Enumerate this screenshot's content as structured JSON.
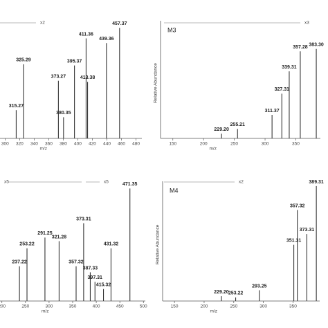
{
  "chart_data": [
    {
      "type": "bar",
      "xlabel": "m/z",
      "zoom_labels": [
        "x2"
      ],
      "x": [
        315.27,
        325.29,
        373.27,
        380.35,
        395.37,
        411.36,
        413.38,
        439.36,
        457.37
      ],
      "x_labels": [
        "315.27",
        "325.29",
        "373.27",
        "380.35",
        "395.37",
        "411.36",
        "413.38",
        "439.36",
        "457.37"
      ],
      "values": [
        24,
        63,
        49,
        18,
        62,
        85,
        48,
        81,
        94
      ],
      "color": "#333333",
      "xlim": [
        293,
        488
      ],
      "xticks": [
        300,
        320,
        340,
        360,
        380,
        400,
        420,
        440,
        460,
        480
      ],
      "ylim": [
        0,
        100
      ]
    },
    {
      "type": "bar",
      "xlabel": "m/z",
      "ylabel": "Relative Abundance",
      "panel_label": "M3",
      "zoom_labels": [
        "x3"
      ],
      "x": [
        229.2,
        255.21,
        311.37,
        327.31,
        339.31,
        357.28,
        383.3
      ],
      "x_labels": [
        "229.20",
        "255.21",
        "311.37",
        "327.31",
        "339.31",
        "357.28",
        "383.30"
      ],
      "values": [
        4,
        8,
        20,
        38,
        57,
        74,
        76
      ],
      "color": "#333333",
      "xlim": [
        130,
        390
      ],
      "xticks": [
        150,
        200,
        250,
        300,
        350
      ],
      "ylim": [
        0,
        100
      ]
    },
    {
      "type": "bar",
      "xlabel": "m/z",
      "zoom_labels": [
        "x5",
        "x5"
      ],
      "x": [
        237.22,
        253.22,
        291.25,
        321.28,
        357.32,
        373.31,
        387.33,
        397.31,
        415.32,
        431.32,
        471.35
      ],
      "x_labels": [
        "237.22",
        "253.22",
        "291.25",
        "321.28",
        "357.32",
        "373.31",
        "387.33",
        "397.31",
        "415.32",
        "431.32",
        "471.35"
      ],
      "values": [
        29,
        44,
        53,
        50,
        29,
        65,
        24,
        16,
        10,
        44,
        94
      ],
      "color": "#333333",
      "xlim": [
        196,
        504
      ],
      "xticks": [
        200,
        250,
        300,
        350,
        400,
        450,
        500
      ],
      "ylim": [
        0,
        100
      ]
    },
    {
      "type": "bar",
      "xlabel": "m/z",
      "ylabel": "Relative Abundance",
      "panel_label": "M4",
      "zoom_labels": [
        "x2"
      ],
      "x": [
        229.2,
        253.22,
        293.25,
        351.31,
        357.32,
        373.31,
        389.31
      ],
      "x_labels": [
        "229.20",
        "253.22",
        "293.25",
        "351.31",
        "357.32",
        "373.31",
        "389.31"
      ],
      "values": [
        4,
        3,
        9,
        47,
        76,
        56,
        96
      ],
      "color": "#333333",
      "xlim": [
        130,
        395
      ],
      "xticks": [
        150,
        200,
        250,
        300,
        350
      ],
      "ylim": [
        0,
        100
      ]
    }
  ]
}
